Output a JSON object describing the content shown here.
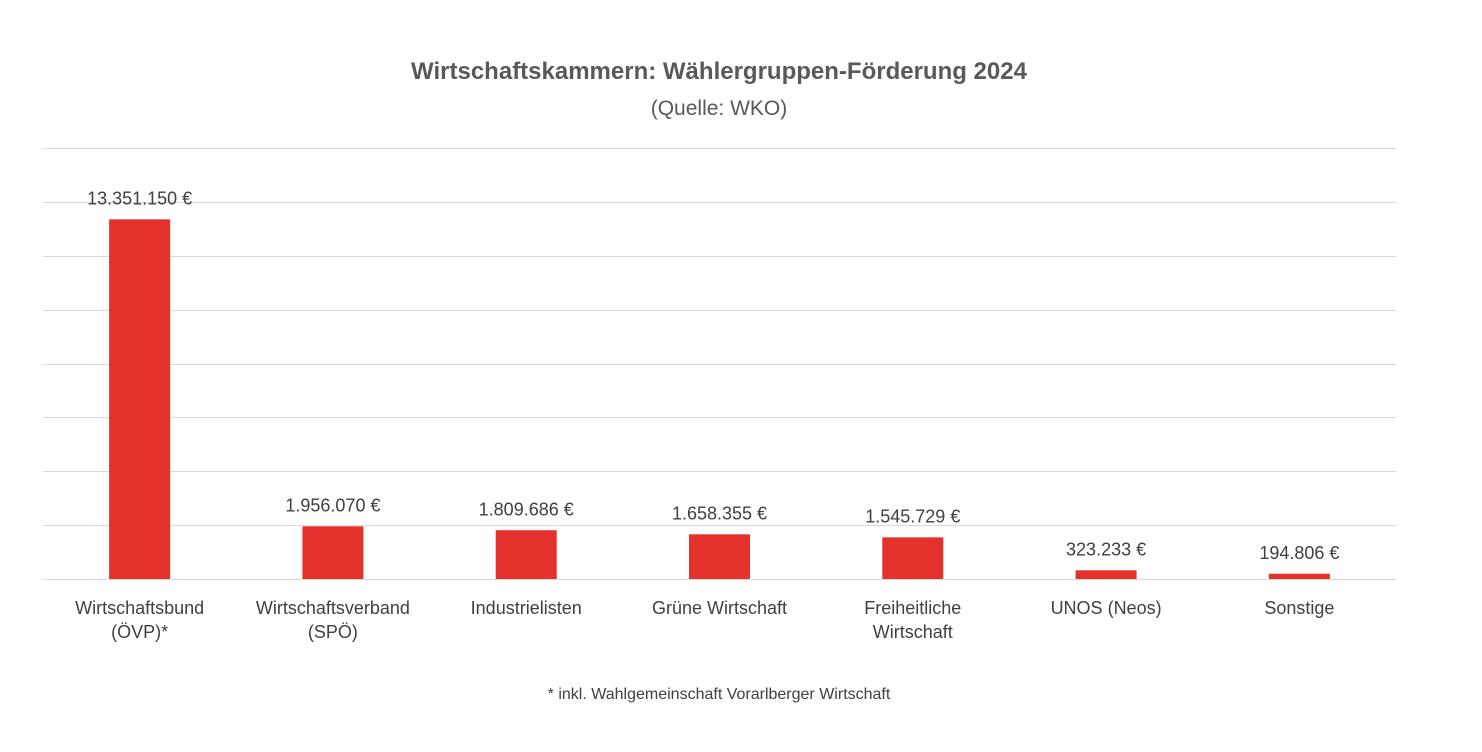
{
  "chart_data": {
    "type": "bar",
    "title": "Wirtschaftskammern: Wählergruppen-Förderung 2024",
    "subtitle": "(Quelle: WKO)",
    "footnote": "* inkl. Wahlgemeinschaft Vorarlberger Wirtschaft",
    "xlabel": "",
    "ylabel": "",
    "categories": [
      [
        "Wirtschaftsbund",
        "(ÖVP)*"
      ],
      [
        "Wirtschaftsverband",
        "(SPÖ)"
      ],
      [
        "Industrielisten"
      ],
      [
        "Grüne Wirtschaft"
      ],
      [
        "Freiheitliche",
        "Wirtschaft"
      ],
      [
        "UNOS (Neos)"
      ],
      [
        "Sonstige"
      ]
    ],
    "values": [
      13351150,
      1956070,
      1809686,
      1658355,
      1545729,
      323233,
      194806
    ],
    "value_labels": [
      "13.351.150 €",
      "1.956.070 €",
      "1.809.686 €",
      "1.658.355 €",
      "1.545.729 €",
      "323.233 €",
      "194.806 €"
    ],
    "ylim": [
      0,
      16000000
    ],
    "y_gridline_step": 2000000,
    "y_tick_labels_shown": false,
    "grid": true,
    "legend": "none",
    "bar_color": "#e4312b",
    "gridline_color": "#d9d9d9",
    "text_color": "#404040"
  }
}
